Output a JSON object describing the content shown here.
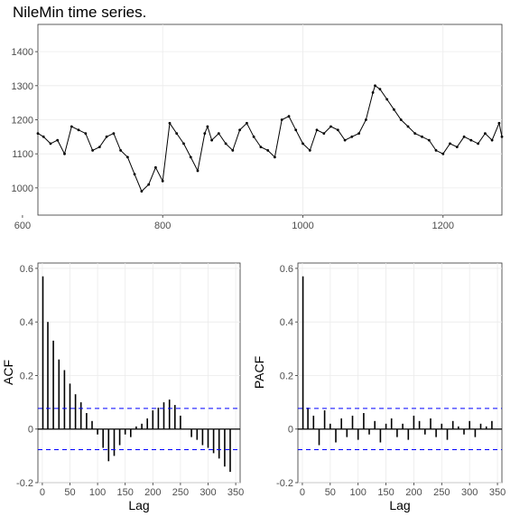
{
  "title": "NileMin time series.",
  "colors": {
    "series": "#000000",
    "confidence": "#0000ff",
    "grid": "#ebebeb",
    "panel_border": "#333333"
  },
  "chart_data": [
    {
      "type": "line",
      "name": "time-series",
      "title": "",
      "xlabel": "",
      "ylabel": "",
      "xlim": [
        622,
        1284
      ],
      "ylim": [
        920,
        1480
      ],
      "xticks": [
        600,
        800,
        1000,
        1200
      ],
      "yticks": [
        1000,
        1100,
        1200,
        1300,
        1400
      ],
      "grid": true,
      "markers": true,
      "x": [
        622,
        630,
        640,
        650,
        660,
        670,
        680,
        690,
        700,
        710,
        720,
        730,
        740,
        750,
        760,
        770,
        780,
        790,
        800,
        810,
        820,
        830,
        840,
        850,
        860,
        864,
        870,
        880,
        890,
        900,
        910,
        920,
        930,
        940,
        950,
        960,
        970,
        980,
        990,
        1000,
        1010,
        1020,
        1030,
        1040,
        1050,
        1060,
        1070,
        1080,
        1090,
        1100,
        1103,
        1110,
        1120,
        1130,
        1140,
        1150,
        1160,
        1170,
        1180,
        1190,
        1200,
        1210,
        1220,
        1230,
        1240,
        1250,
        1260,
        1270,
        1280,
        1284
      ],
      "y": [
        1160,
        1150,
        1130,
        1140,
        1100,
        1180,
        1170,
        1160,
        1110,
        1120,
        1150,
        1160,
        1110,
        1090,
        1040,
        990,
        1010,
        1060,
        1020,
        1190,
        1160,
        1130,
        1090,
        1050,
        1160,
        1180,
        1140,
        1160,
        1130,
        1110,
        1170,
        1190,
        1150,
        1120,
        1110,
        1090,
        1200,
        1210,
        1170,
        1130,
        1110,
        1170,
        1160,
        1180,
        1170,
        1140,
        1150,
        1160,
        1200,
        1280,
        1300,
        1290,
        1260,
        1230,
        1200,
        1180,
        1160,
        1150,
        1140,
        1110,
        1100,
        1130,
        1120,
        1150,
        1140,
        1130,
        1160,
        1140,
        1190,
        1150
      ]
    },
    {
      "type": "bar",
      "name": "acf",
      "title": "",
      "xlabel": "Lag",
      "ylabel": "ACF",
      "xlim": [
        -8,
        358
      ],
      "ylim": [
        -0.2,
        0.62
      ],
      "xticks": [
        0,
        50,
        100,
        150,
        200,
        250,
        300,
        350
      ],
      "yticks": [
        -0.2,
        0,
        0.2,
        0.4,
        0.6
      ],
      "grid": true,
      "confidence_bounds": [
        0.077,
        -0.077
      ],
      "lags": [
        1,
        10,
        20,
        30,
        40,
        50,
        60,
        70,
        80,
        90,
        100,
        110,
        120,
        130,
        140,
        150,
        160,
        170,
        180,
        190,
        200,
        210,
        220,
        230,
        240,
        250,
        260,
        270,
        280,
        290,
        300,
        310,
        320,
        330,
        340
      ],
      "values": [
        0.57,
        0.4,
        0.33,
        0.26,
        0.22,
        0.17,
        0.13,
        0.1,
        0.06,
        0.03,
        -0.02,
        -0.07,
        -0.12,
        -0.1,
        -0.06,
        -0.02,
        -0.03,
        0.01,
        0.02,
        0.04,
        0.07,
        0.08,
        0.1,
        0.11,
        0.09,
        0.05,
        0.0,
        -0.03,
        -0.04,
        -0.06,
        -0.07,
        -0.09,
        -0.11,
        -0.14,
        -0.16
      ]
    },
    {
      "type": "bar",
      "name": "pacf",
      "title": "",
      "xlabel": "Lag",
      "ylabel": "PACF",
      "xlim": [
        -8,
        358
      ],
      "ylim": [
        -0.2,
        0.62
      ],
      "xticks": [
        0,
        50,
        100,
        150,
        200,
        250,
        300,
        350
      ],
      "yticks": [
        -0.2,
        0,
        0.2,
        0.4,
        0.6
      ],
      "grid": true,
      "confidence_bounds": [
        0.077,
        -0.077
      ],
      "lags": [
        1,
        10,
        20,
        30,
        40,
        50,
        60,
        70,
        80,
        90,
        100,
        110,
        120,
        130,
        140,
        150,
        160,
        170,
        180,
        190,
        200,
        210,
        220,
        230,
        240,
        250,
        260,
        270,
        280,
        290,
        300,
        310,
        320,
        330,
        340
      ],
      "values": [
        0.57,
        0.08,
        0.05,
        -0.06,
        0.07,
        0.02,
        -0.05,
        0.04,
        -0.03,
        0.05,
        -0.04,
        0.06,
        -0.02,
        0.03,
        -0.05,
        0.02,
        0.04,
        -0.03,
        0.02,
        -0.04,
        0.05,
        0.03,
        -0.02,
        0.04,
        -0.03,
        0.02,
        -0.04,
        0.03,
        0.01,
        -0.02,
        0.03,
        -0.03,
        0.02,
        0.01,
        0.03
      ]
    }
  ]
}
